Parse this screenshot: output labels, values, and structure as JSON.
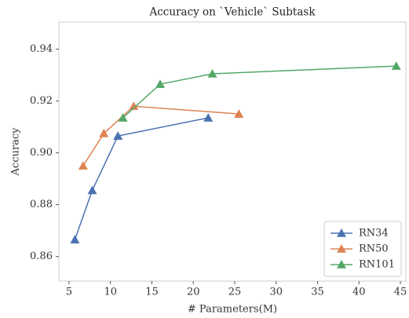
{
  "chart_data": {
    "type": "line",
    "title": "Accuracy on `Vehicle` Subtask",
    "x_label": "# Parameters(M)",
    "y_label": "Accuracy",
    "series": [
      {
        "name": "RN34",
        "color": "#4c72b0",
        "x": [
          5.7,
          7.8,
          10.9,
          21.8
        ],
        "values": [
          0.8665,
          0.8855,
          0.9065,
          0.9135
        ]
      },
      {
        "name": "RN50",
        "color": "#dd8452",
        "x": [
          6.7,
          9.2,
          12.8,
          25.5
        ],
        "values": [
          0.895,
          0.9075,
          0.918,
          0.915
        ]
      },
      {
        "name": "RN101",
        "color": "#55a868",
        "x": [
          11.5,
          16.0,
          22.3,
          44.5
        ],
        "values": [
          0.9135,
          0.9265,
          0.9305,
          0.9335
        ]
      }
    ],
    "xlim": [
      3.77,
      45.66
    ],
    "xticks": [
      5,
      10,
      15,
      20,
      25,
      30,
      35,
      40,
      45
    ],
    "ylim": [
      0.8505,
      0.9505
    ],
    "yticks": [
      0.86,
      0.88,
      {
        "value": 0.9,
        "label": "0.90"
      },
      0.92,
      0.94
    ],
    "legend": "lower right",
    "grid": false
  }
}
